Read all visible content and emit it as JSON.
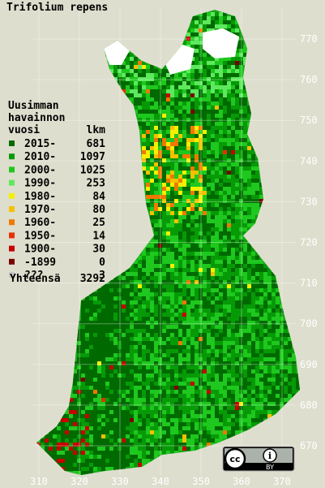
{
  "title": "Trifolium repens",
  "legend": {
    "header": [
      "Uusimman",
      "havainnon",
      "vuosi"
    ],
    "count_header": "lkm",
    "rows": [
      {
        "label": "2015-",
        "count": 681,
        "color": "#006a00"
      },
      {
        "label": "2010-",
        "count": 1097,
        "color": "#079a07"
      },
      {
        "label": "2000-",
        "count": 1025,
        "color": "#1ec81e"
      },
      {
        "label": "1990-",
        "count": 253,
        "color": "#5ee85e"
      },
      {
        "label": "1980-",
        "count": 84,
        "color": "#f5f000"
      },
      {
        "label": "1970-",
        "count": 80,
        "color": "#f5c000"
      },
      {
        "label": "1960-",
        "count": 25,
        "color": "#f07800"
      },
      {
        "label": "1950-",
        "count": 14,
        "color": "#e83000"
      },
      {
        "label": "1900-",
        "count": 30,
        "color": "#c80000"
      },
      {
        "label": "-1899",
        "count": 0,
        "color": "#7a0000"
      },
      {
        "label": "???",
        "count": 3,
        "color": "#c8c8c8"
      }
    ],
    "total_label": "Yhteensä",
    "total": 3292
  },
  "northing_ticks": [
    770,
    760,
    750,
    740,
    730,
    720,
    710,
    700,
    690,
    680,
    670
  ],
  "easting_ticks": [
    310,
    320,
    330,
    340,
    350,
    360,
    370
  ],
  "license": {
    "symbol": "cc",
    "info": "i",
    "text": "BY"
  }
}
